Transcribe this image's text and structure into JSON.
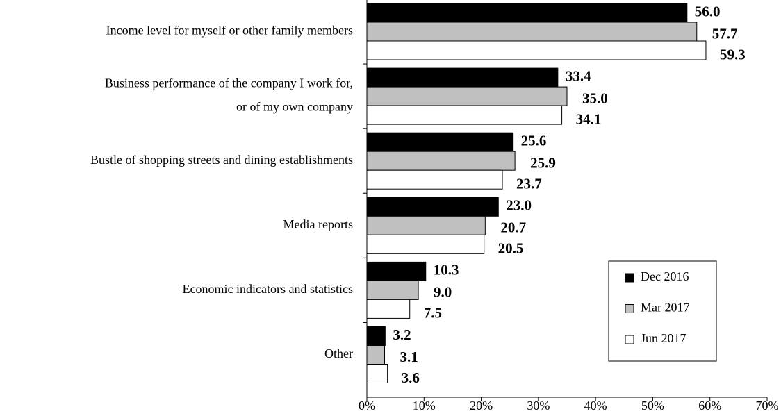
{
  "chart_data": {
    "type": "hbar",
    "categories": [
      "Income level for myself or other family members",
      [
        "Business performance of the company I work for,",
        "or of my own company"
      ],
      "Bustle of shopping streets and dining establishments",
      "Media reports",
      "Economic indicators and statistics",
      "Other"
    ],
    "series": [
      {
        "name": "Dec 2016",
        "color": "#000000",
        "values": [
          56.0,
          33.4,
          25.6,
          23.0,
          10.3,
          3.2
        ],
        "value_labels": [
          "56.0",
          "33.4",
          "25.6",
          "23.0",
          "10.3",
          "3.2"
        ]
      },
      {
        "name": "Mar 2017",
        "color": "#c0c0c0",
        "values": [
          57.7,
          35.0,
          25.9,
          20.7,
          9.0,
          3.1
        ],
        "value_labels": [
          "57.7",
          "35.0",
          "25.9",
          "20.7",
          "9.0",
          "3.1"
        ]
      },
      {
        "name": "Jun 2017",
        "color": "#ffffff",
        "values": [
          59.3,
          34.1,
          23.7,
          20.5,
          7.5,
          3.6
        ],
        "value_labels": [
          "59.3",
          "34.1",
          "23.7",
          "20.5",
          "7.5",
          "3.6"
        ]
      }
    ],
    "xlim": [
      0,
      70
    ],
    "xticks": [
      {
        "value": 0,
        "label": "0%"
      },
      {
        "value": 10,
        "label": "10%"
      },
      {
        "value": 20,
        "label": "20%"
      },
      {
        "value": 30,
        "label": "30%"
      },
      {
        "value": 40,
        "label": "40%"
      },
      {
        "value": 50,
        "label": "50%"
      },
      {
        "value": 60,
        "label": "60%"
      },
      {
        "value": 70,
        "label": "70%"
      }
    ],
    "legend": "lower-right"
  }
}
